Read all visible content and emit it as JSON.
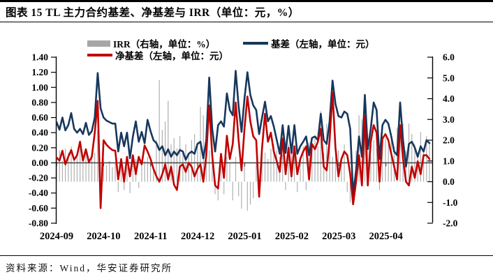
{
  "title": "图表 15 TL 主力合约基差、净基差与 IRR（单位：元，%）",
  "source": "资料来源：Wind，华安证券研究所",
  "legend": [
    {
      "label": "IRR（右轴，单位：%）",
      "type": "bar",
      "color": "#a6a6a6"
    },
    {
      "label": "基差（左轴，单位：元）",
      "type": "line",
      "color": "#17375d"
    },
    {
      "label": "净基差（左轴，单位：元）",
      "type": "line",
      "color": "#c00000"
    }
  ],
  "colors": {
    "basis": "#17375d",
    "net_basis": "#c00000",
    "irr_bar": "#b0b0b0",
    "zero_line": "#4a4a4a"
  },
  "chart_data": {
    "type": "mixed",
    "title": "图表 15 TL 主力合约基差、净基差与 IRR（单位：元，%）",
    "legend_position": "top",
    "grid": false,
    "x_ticks": [
      "2024-09",
      "2024-10",
      "2024-11",
      "2024-12",
      "2025-01",
      "2025-02",
      "2025-03",
      "2025-04"
    ],
    "left_axis": {
      "unit": "元",
      "min": -0.8,
      "max": 1.4,
      "ticks": [
        "1.40",
        "1.20",
        "1.00",
        "0.80",
        "0.60",
        "0.40",
        "0.20",
        "0.00",
        "-0.20",
        "-0.40",
        "-0.60",
        "-0.80"
      ]
    },
    "right_axis": {
      "unit": "%",
      "min": -2.0,
      "max": 6.0,
      "ticks": [
        "6.0",
        "5.0",
        "4.0",
        "3.0",
        "2.0",
        "1.0",
        "0.0",
        "-1.0",
        "-2.0"
      ]
    },
    "series": [
      {
        "name": "IRR（右轴，单位：%）",
        "type": "bar",
        "axis": "right",
        "color": "#b0b0b0",
        "values": [
          1.2,
          1.5,
          1.0,
          1.6,
          1.4,
          1.7,
          1.1,
          1.3,
          1.6,
          1.2,
          1.5,
          1.0,
          1.3,
          1.4,
          2.5,
          0.9,
          1.1,
          0.8,
          1.0,
          0.7,
          0.9,
          -0.5,
          0.8,
          -0.4,
          0.7,
          -0.55,
          0.9,
          1.1,
          -0.3,
          0.8,
          1.0,
          1.2,
          0.9,
          0.7,
          2.0,
          4.9,
          2.5,
          2.9,
          3.9,
          1.8,
          2.1,
          1.6,
          2.2,
          1.5,
          1.8,
          1.3,
          2.0,
          2.3,
          1.9,
          3.6,
          3.2,
          1.8,
          1.5,
          2.0,
          -0.6,
          -0.9,
          0.8,
          -0.6,
          1.2,
          0.9,
          -0.9,
          1.2,
          -0.7,
          -1.3,
          0.9,
          -1.4,
          -1.1,
          -0.8,
          0.9,
          -0.5,
          1.2,
          1.4,
          1.1,
          1.6,
          1.8,
          1.5,
          1.2,
          1.3,
          -0.4,
          1.8,
          1.4,
          1.6,
          -0.5,
          1.2,
          1.7,
          -0.4,
          1.9,
          1.5,
          2.2,
          1.7,
          3.4,
          1.4,
          2.8,
          1.8,
          1.2,
          2.0,
          1.5,
          1.0,
          1.8,
          -0.5,
          -1.0,
          -0.8,
          1.5,
          3.2,
          3.0,
          2.6,
          1.5,
          1.2,
          2.0,
          1.6,
          -0.4,
          1.7,
          2.1,
          1.8,
          2.3,
          1.7,
          2.6,
          2.0,
          2.8,
          1.5,
          2.8,
          2.3,
          1.8,
          1.4,
          2.4,
          1.6,
          2.2,
          1.8
        ]
      },
      {
        "name": "基差（左轴，单位：元）",
        "type": "line",
        "axis": "left",
        "color": "#17375d",
        "values": [
          0.54,
          0.44,
          0.6,
          0.43,
          0.5,
          0.66,
          0.45,
          0.4,
          0.45,
          0.38,
          0.53,
          0.37,
          0.42,
          0.6,
          1.19,
          0.72,
          0.6,
          0.56,
          0.54,
          0.52,
          0.52,
          0.15,
          0.4,
          0.22,
          0.4,
          0.06,
          0.35,
          0.55,
          0.28,
          0.41,
          0.26,
          0.57,
          0.42,
          0.3,
          0.26,
          0.17,
          0.22,
          0.1,
          0.18,
          0.08,
          0.15,
          0.1,
          0.17,
          0.15,
          0.04,
          0.12,
          0.15,
          0.12,
          0.25,
          0.28,
          0.06,
          0.3,
          1.13,
          0.45,
          0.15,
          0.5,
          0.55,
          0.48,
          0.92,
          0.7,
          0.63,
          1.22,
          0.75,
          0.41,
          0.85,
          1.2,
          0.9,
          0.76,
          0.7,
          0.38,
          0.6,
          0.81,
          0.55,
          0.62,
          0.48,
          0.3,
          0.12,
          0.5,
          0.13,
          0.49,
          0.13,
          0.5,
          0.12,
          0.22,
          0.28,
          0.35,
          0.1,
          0.33,
          0.35,
          0.3,
          0.65,
          0.3,
          0.25,
          0.55,
          1.09,
          0.78,
          0.62,
          0.6,
          0.68,
          0.65,
          0.45,
          -0.42,
          -0.1,
          0.35,
          0.08,
          0.9,
          0.18,
          0.45,
          0.8,
          0.7,
          0.05,
          0.5,
          0.57,
          0.52,
          0.35,
          0.15,
          0.1,
          0.8,
          0.3,
          -0.05,
          0.25,
          0.28,
          0.2,
          0.08,
          0.22,
          0.15,
          0.3,
          0.26
        ]
      },
      {
        "name": "净基差（左轴，单位：元）",
        "type": "line",
        "axis": "left",
        "color": "#c00000",
        "values": [
          0.07,
          0.03,
          0.16,
          -0.02,
          0.08,
          0.17,
          0.04,
          0.1,
          0.28,
          0.03,
          0.18,
          0.01,
          0.08,
          0.4,
          0.82,
          -0.6,
          0.3,
          0.24,
          0.2,
          0.17,
          0.16,
          -0.22,
          0.05,
          -0.25,
          0.08,
          -0.18,
          0.1,
          -0.15,
          0.08,
          -0.02,
          0.23,
          0.15,
          0.05,
          -0.08,
          -0.18,
          -0.25,
          -0.15,
          -0.02,
          -0.22,
          -0.05,
          -0.29,
          -0.36,
          -0.05,
          -0.02,
          -0.12,
          0.0,
          -0.05,
          -0.18,
          -0.08,
          -0.02,
          -0.25,
          0.1,
          0.76,
          0.1,
          -0.3,
          -0.34,
          0.12,
          -0.2,
          0.36,
          0.05,
          0.25,
          0.8,
          0.3,
          -0.1,
          0.45,
          0.88,
          0.55,
          0.35,
          0.3,
          -0.45,
          0.2,
          0.65,
          0.28,
          0.4,
          0.15,
          0.02,
          -0.12,
          0.32,
          -0.15,
          0.2,
          -0.18,
          0.22,
          -0.15,
          0.05,
          0.15,
          0.22,
          -0.22,
          0.25,
          0.18,
          0.28,
          0.45,
          -0.05,
          -0.1,
          0.3,
          0.93,
          0.2,
          -0.18,
          0.05,
          0.15,
          0.1,
          -0.15,
          -0.55,
          -0.25,
          0.1,
          -0.3,
          0.62,
          -0.3,
          0.28,
          0.5,
          0.4,
          -0.25,
          0.32,
          0.38,
          0.3,
          0.12,
          -0.05,
          -0.22,
          0.5,
          0.05,
          -0.25,
          -0.3,
          -0.05,
          -0.2,
          0.02,
          -0.15,
          0.1,
          0.1,
          0.05
        ]
      }
    ]
  }
}
